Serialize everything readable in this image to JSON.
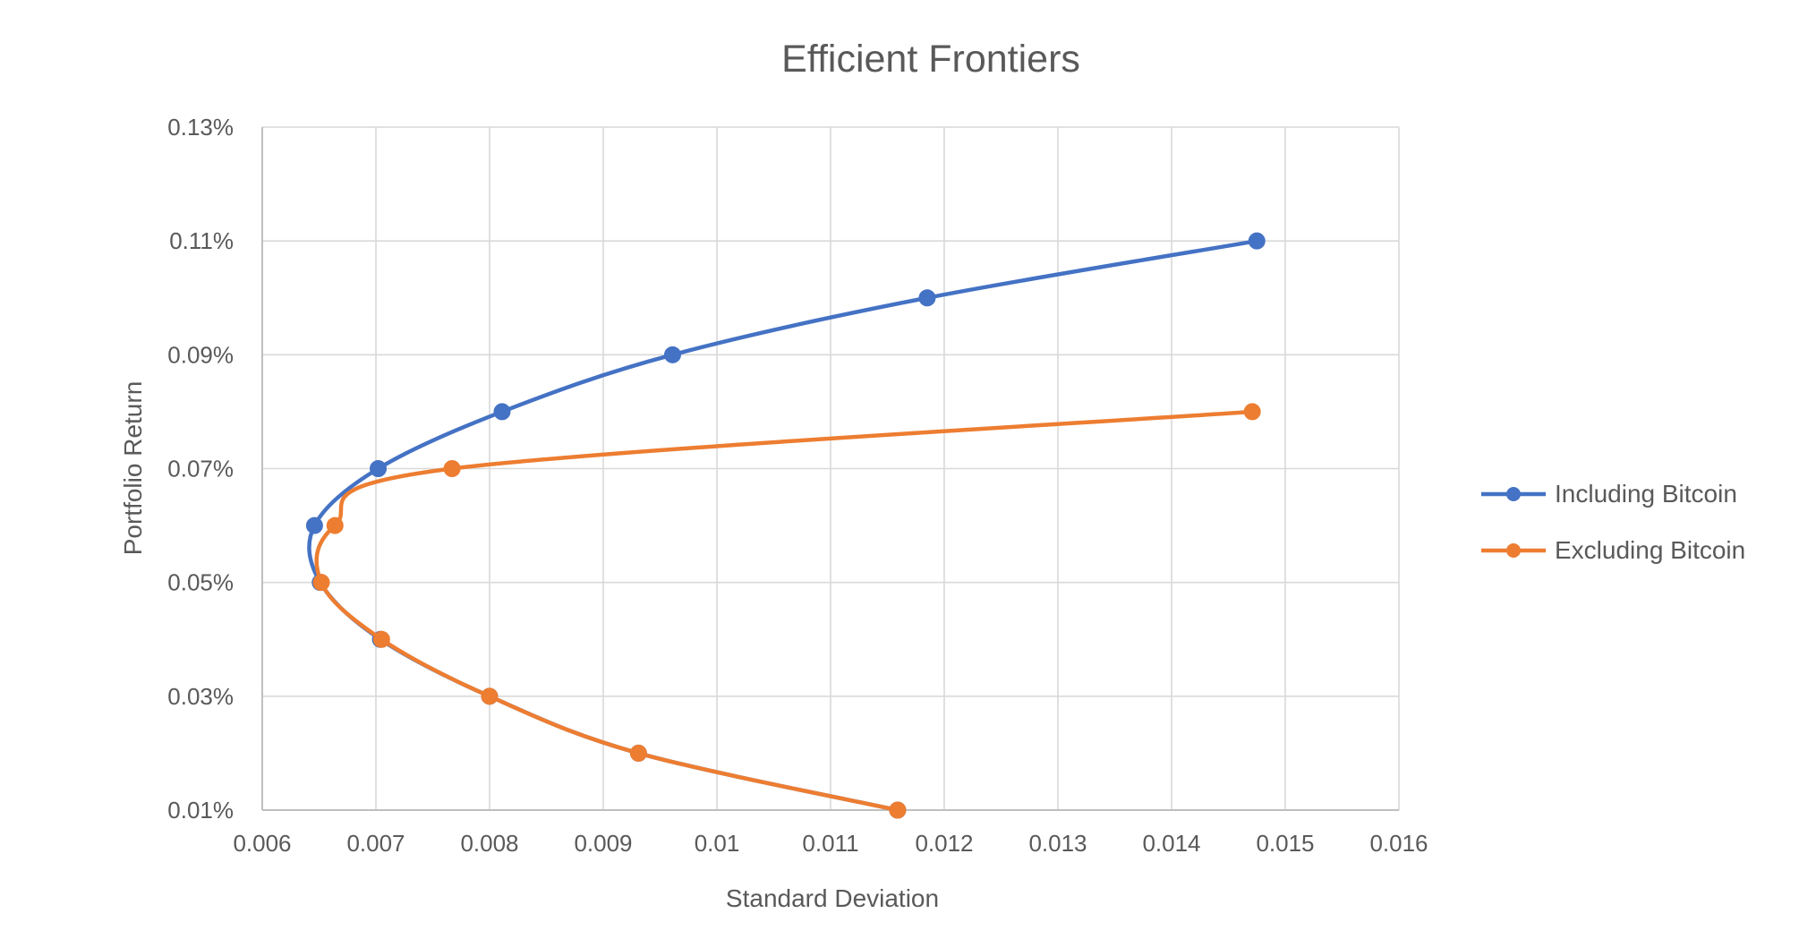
{
  "chart_data": {
    "type": "scatter",
    "title": "Efficient Frontiers",
    "xlabel": "Standard Deviation",
    "ylabel": "Portfolio Return",
    "xlim": [
      0.006,
      0.016
    ],
    "ylim": [
      0.0001,
      0.0013
    ],
    "x_ticks": [
      0.006,
      0.007,
      0.008,
      0.009,
      0.01,
      0.011,
      0.012,
      0.013,
      0.014,
      0.015,
      0.016
    ],
    "x_tick_labels": [
      "0.006",
      "0.007",
      "0.008",
      "0.009",
      "0.01",
      "0.011",
      "0.012",
      "0.013",
      "0.014",
      "0.015",
      "0.016"
    ],
    "y_ticks": [
      0.0001,
      0.0003,
      0.0005,
      0.0007,
      0.0009,
      0.0011,
      0.0013
    ],
    "y_tick_labels": [
      "0.01%",
      "0.03%",
      "0.05%",
      "0.07%",
      "0.09%",
      "0.11%",
      "0.13%"
    ],
    "grid": true,
    "legend_position": "right",
    "smooth_lines": true,
    "series": [
      {
        "name": "Including Bitcoin",
        "color": "#4472C4",
        "points": [
          {
            "x": 0.01159,
            "y": 0.0001
          },
          {
            "x": 0.00931,
            "y": 0.0002
          },
          {
            "x": 0.008,
            "y": 0.0003
          },
          {
            "x": 0.00704,
            "y": 0.0004
          },
          {
            "x": 0.00651,
            "y": 0.0005
          },
          {
            "x": 0.00646,
            "y": 0.0006
          },
          {
            "x": 0.00702,
            "y": 0.0007
          },
          {
            "x": 0.00811,
            "y": 0.0008
          },
          {
            "x": 0.00961,
            "y": 0.0009
          },
          {
            "x": 0.01185,
            "y": 0.001
          },
          {
            "x": 0.01475,
            "y": 0.0011
          }
        ]
      },
      {
        "name": "Excluding Bitcoin",
        "color": "#ED7D31",
        "points": [
          {
            "x": 0.01159,
            "y": 0.0001
          },
          {
            "x": 0.00931,
            "y": 0.0002
          },
          {
            "x": 0.008,
            "y": 0.0003
          },
          {
            "x": 0.00705,
            "y": 0.0004
          },
          {
            "x": 0.00652,
            "y": 0.0005
          },
          {
            "x": 0.00664,
            "y": 0.0006
          },
          {
            "x": 0.00767,
            "y": 0.0007
          },
          {
            "x": 0.01471,
            "y": 0.0008
          }
        ]
      }
    ]
  }
}
